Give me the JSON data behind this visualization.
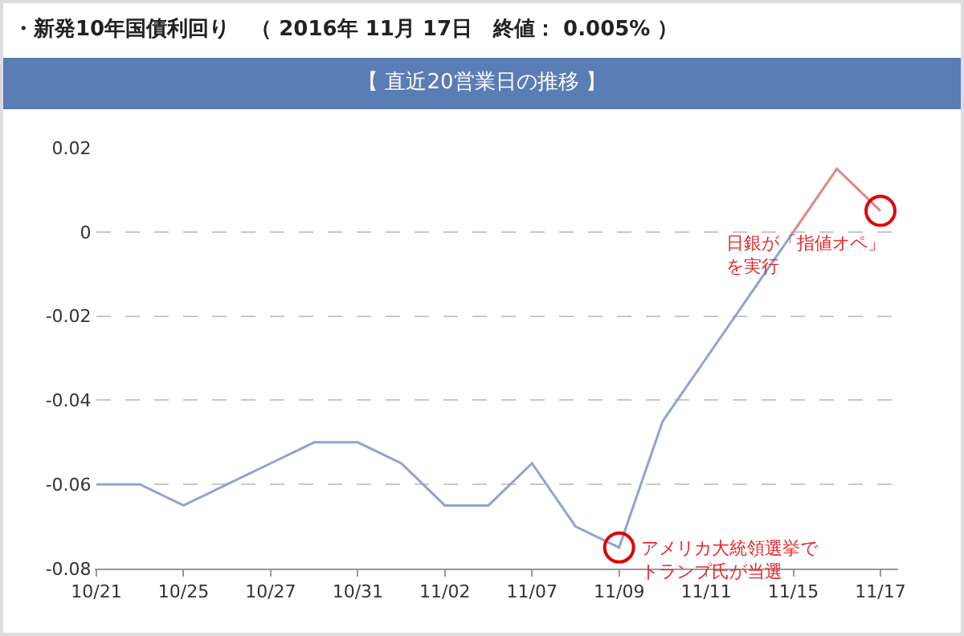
{
  "chart_data": {
    "type": "line",
    "title": "・新発10年国債利回り　（ 2016年 11月 17日　終値： 0.005% ）",
    "subtitle": "【 直近20営業日の推移 】",
    "categories": [
      "10/21",
      null,
      "10/25",
      null,
      "10/27",
      null,
      "10/31",
      null,
      "11/02",
      null,
      "11/07",
      null,
      "11/09",
      null,
      "11/11",
      null,
      "11/15",
      null,
      "11/17"
    ],
    "series": [
      {
        "color": "#8fa3d3",
        "values": [
          -0.06,
          -0.06,
          -0.065,
          -0.06,
          -0.055,
          -0.05,
          -0.05,
          -0.055,
          -0.065,
          -0.065,
          -0.055,
          -0.07,
          -0.075,
          -0.045,
          -0.03,
          -0.015,
          0,
          null,
          null
        ]
      },
      {
        "color": "#e08585",
        "values": [
          null,
          null,
          null,
          null,
          null,
          null,
          null,
          null,
          null,
          null,
          null,
          null,
          null,
          null,
          null,
          null,
          0,
          0.015,
          0.005
        ]
      }
    ],
    "ylim": [
      -0.08,
      0.02
    ],
    "yticks": [
      -0.08,
      -0.06,
      -0.04,
      -0.02,
      0,
      0.02
    ],
    "grid": "y",
    "line_style": "solid",
    "marker": "none",
    "annotations": [
      {
        "text": "アメリカ大統領選挙でトランプ氏が当選",
        "x": "11/09",
        "y": -0.075
      },
      {
        "text": "日銀が「指値オペ」を実行",
        "x": "11/17",
        "y": 0.005
      }
    ]
  }
}
